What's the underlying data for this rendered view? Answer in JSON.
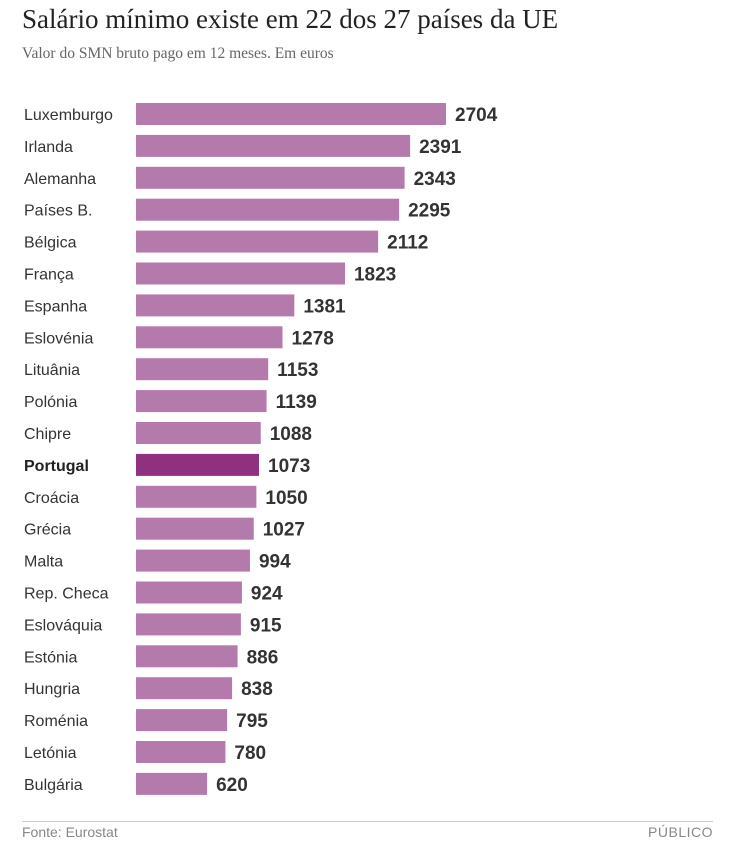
{
  "chart_data": {
    "type": "bar",
    "orientation": "horizontal",
    "title": "Salário mínimo existe em 22 dos 27 países da UE",
    "subtitle": "Valor do SMN bruto pago em 12 meses. Em euros",
    "categories": [
      "Luxemburgo",
      "Irlanda",
      "Alemanha",
      "Países B.",
      "Bélgica",
      "França",
      "Espanha",
      "Eslovénia",
      "Lituânia",
      "Polónia",
      "Chipre",
      "Portugal",
      "Croácia",
      "Grécia",
      "Malta",
      "Rep. Checa",
      "Eslováquia",
      "Estónia",
      "Hungria",
      "Roménia",
      "Letónia",
      "Bulgária"
    ],
    "values": [
      2704,
      2391,
      2343,
      2295,
      2112,
      1823,
      1381,
      1278,
      1153,
      1139,
      1088,
      1073,
      1050,
      1027,
      994,
      924,
      915,
      886,
      838,
      795,
      780,
      620
    ],
    "highlight": "Portugal",
    "xlim": [
      0,
      2704
    ],
    "xlabel": "",
    "ylabel": "",
    "grid": false,
    "colors": {
      "bar": "#b57aac",
      "highlight": "#90317f"
    }
  },
  "footer": {
    "source": "Fonte: Eurostat",
    "brand": "PÚBLICO"
  }
}
